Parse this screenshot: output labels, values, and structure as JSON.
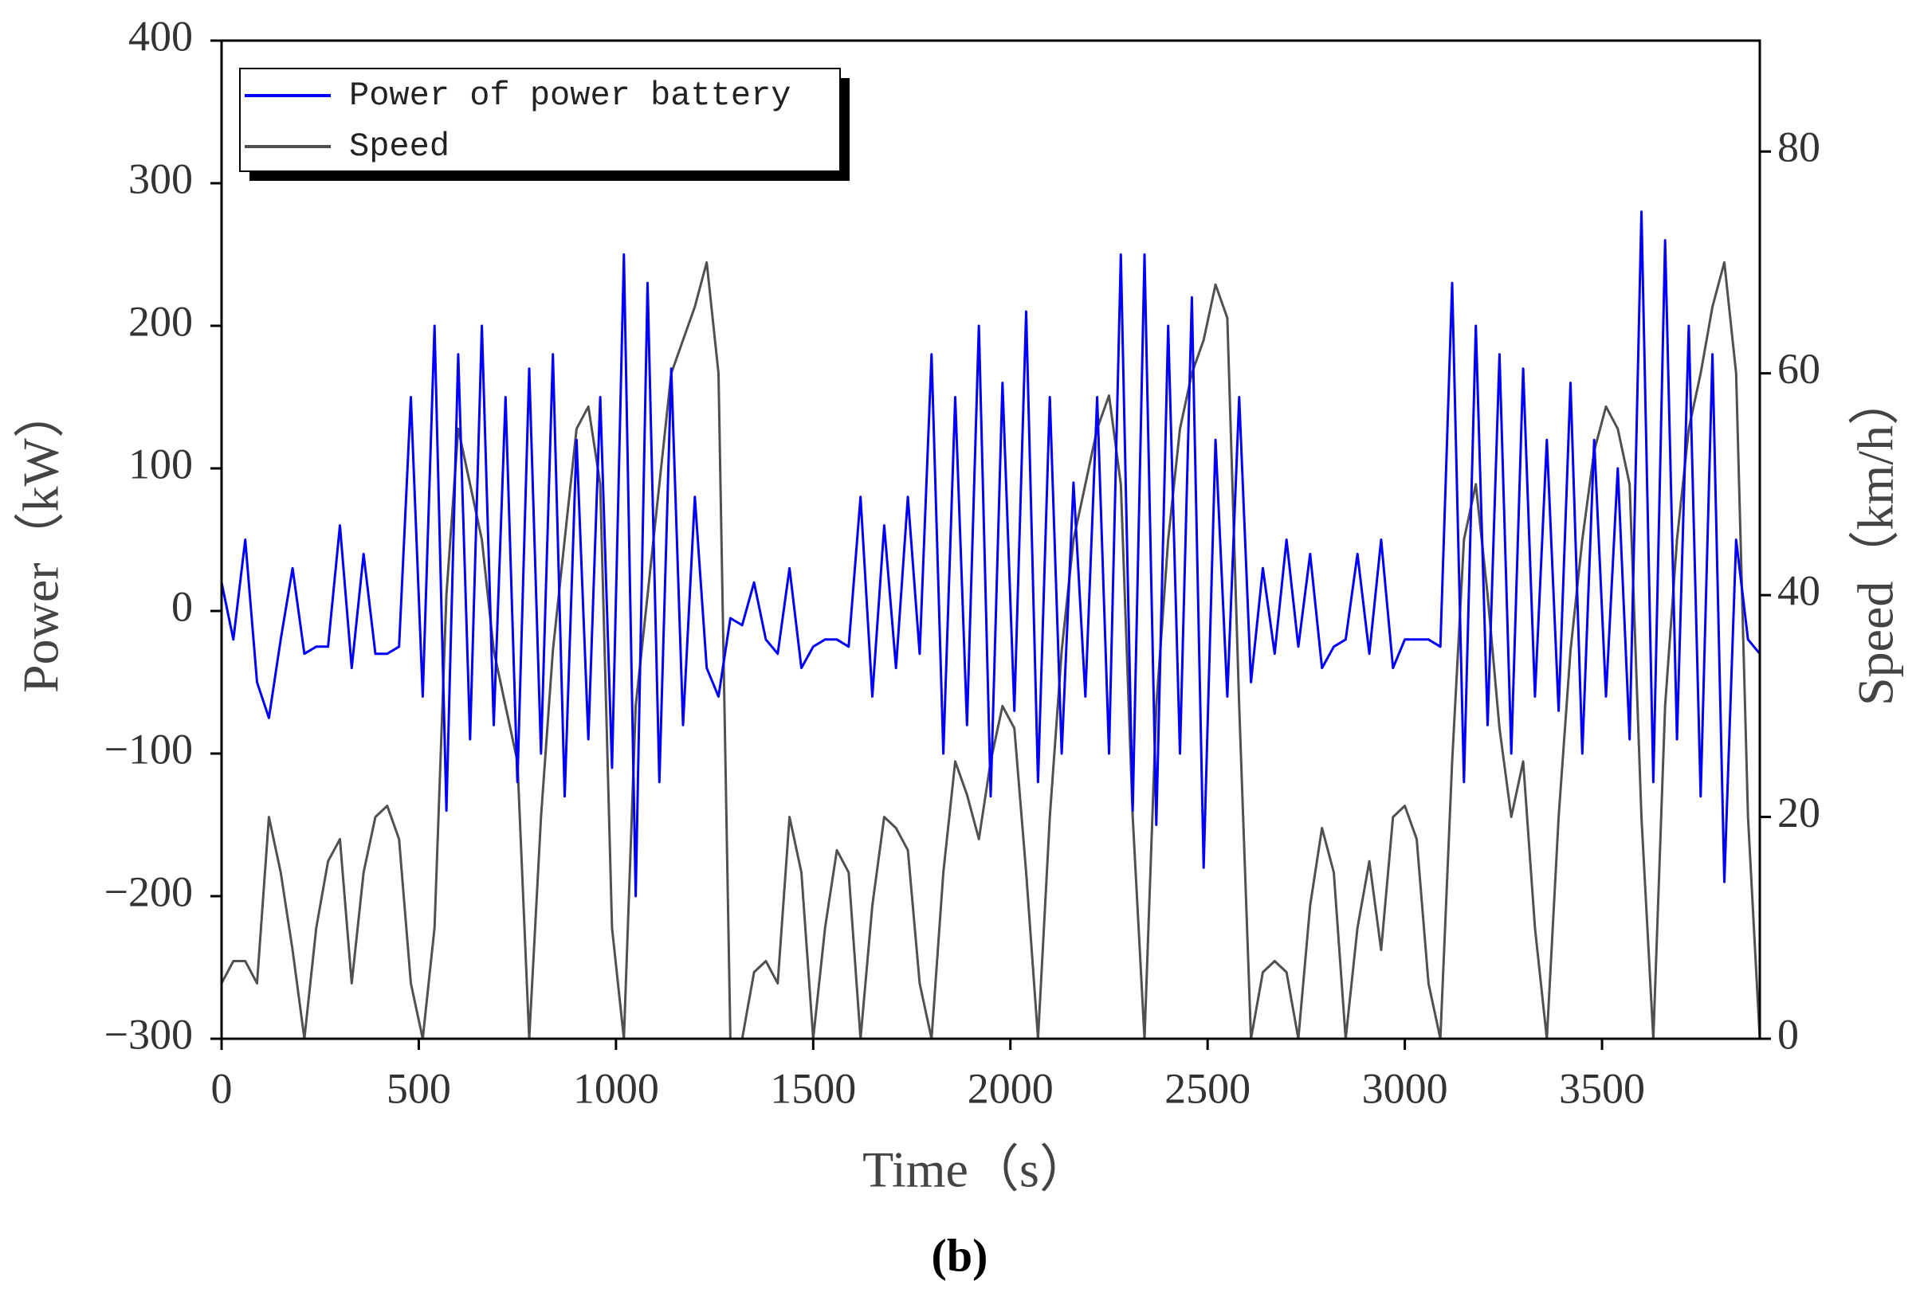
{
  "chart_data": {
    "type": "line",
    "caption": "(b)",
    "xlabel": "Time（s）",
    "ylabel": "Power（kW）",
    "y2label": "Speed（km/h）",
    "x": [
      0,
      30,
      60,
      90,
      120,
      150,
      180,
      210,
      240,
      270,
      300,
      330,
      360,
      390,
      420,
      450,
      480,
      510,
      540,
      570,
      600,
      630,
      660,
      690,
      720,
      750,
      780,
      810,
      840,
      870,
      900,
      930,
      960,
      990,
      1020,
      1050,
      1080,
      1110,
      1140,
      1170,
      1200,
      1230,
      1260,
      1290,
      1320,
      1350,
      1380,
      1410,
      1440,
      1470,
      1500,
      1530,
      1560,
      1590,
      1620,
      1650,
      1680,
      1710,
      1740,
      1770,
      1800,
      1830,
      1860,
      1890,
      1920,
      1950,
      1980,
      2010,
      2040,
      2070,
      2100,
      2130,
      2160,
      2190,
      2220,
      2250,
      2280,
      2310,
      2340,
      2370,
      2400,
      2430,
      2460,
      2490,
      2520,
      2550,
      2580,
      2610,
      2640,
      2670,
      2700,
      2730,
      2760,
      2790,
      2820,
      2850,
      2880,
      2910,
      2940,
      2970,
      3000,
      3030,
      3060,
      3090,
      3120,
      3150,
      3180,
      3210,
      3240,
      3270,
      3300,
      3330,
      3360,
      3390,
      3420,
      3450,
      3480,
      3510,
      3540,
      3570,
      3600,
      3630,
      3660,
      3690,
      3720,
      3750,
      3780,
      3810,
      3840,
      3870,
      3900
    ],
    "series": [
      {
        "name": "Power of power battery",
        "color": "#0000ff",
        "axis": "y",
        "values": [
          20,
          -20,
          50,
          -50,
          -75,
          -20,
          30,
          -30,
          -25,
          -25,
          60,
          -40,
          40,
          -30,
          -30,
          -25,
          150,
          -60,
          200,
          -140,
          180,
          -90,
          200,
          -80,
          150,
          -120,
          170,
          -100,
          180,
          -130,
          120,
          -90,
          150,
          -110,
          250,
          -200,
          230,
          -120,
          170,
          -80,
          80,
          -40,
          -60,
          -5,
          -10,
          20,
          -20,
          -30,
          30,
          -40,
          -25,
          -20,
          -20,
          -25,
          80,
          -60,
          60,
          -40,
          80,
          -30,
          180,
          -100,
          150,
          -80,
          200,
          -130,
          160,
          -70,
          210,
          -120,
          150,
          -100,
          90,
          -60,
          150,
          -100,
          250,
          -140,
          250,
          -150,
          200,
          -100,
          220,
          -180,
          120,
          -60,
          150,
          -50,
          30,
          -30,
          50,
          -25,
          40,
          -40,
          -25,
          -20,
          40,
          -30,
          50,
          -40,
          -20,
          -20,
          -20,
          -25,
          230,
          -120,
          200,
          -80,
          180,
          -100,
          170,
          -60,
          120,
          -70,
          160,
          -100,
          120,
          -60,
          100,
          -90,
          280,
          -120,
          260,
          -90,
          200,
          -130,
          180,
          -190,
          50,
          -20,
          -30
        ]
      },
      {
        "name": "Speed",
        "color": "#505050",
        "axis": "y2",
        "values": [
          5,
          7,
          7,
          5,
          20,
          15,
          8,
          0,
          10,
          16,
          18,
          5,
          15,
          20,
          21,
          18,
          5,
          0,
          10,
          40,
          55,
          50,
          45,
          35,
          30,
          25,
          0,
          20,
          35,
          45,
          55,
          57,
          50,
          10,
          0,
          30,
          40,
          50,
          60,
          63,
          66,
          70,
          60,
          0,
          0,
          6,
          7,
          5,
          20,
          15,
          0,
          10,
          17,
          15,
          0,
          12,
          20,
          19,
          17,
          5,
          0,
          15,
          25,
          22,
          18,
          25,
          30,
          28,
          15,
          0,
          20,
          35,
          45,
          50,
          55,
          58,
          50,
          20,
          0,
          30,
          45,
          55,
          60,
          63,
          68,
          65,
          30,
          0,
          6,
          7,
          6,
          0,
          12,
          19,
          15,
          0,
          10,
          16,
          8,
          20,
          21,
          18,
          5,
          0,
          25,
          45,
          50,
          40,
          28,
          20,
          25,
          10,
          0,
          20,
          35,
          45,
          53,
          57,
          55,
          50,
          20,
          0,
          30,
          45,
          55,
          60,
          66,
          70,
          60,
          20,
          0
        ]
      }
    ],
    "xlim": [
      0,
      3900
    ],
    "xticks": [
      0,
      500,
      1000,
      1500,
      2000,
      2500,
      3000,
      3500
    ],
    "ylim": [
      -300,
      400
    ],
    "yticks": [
      {
        "value": -300,
        "label": "−300"
      },
      {
        "value": -200,
        "label": "−200"
      },
      {
        "value": -100,
        "label": "−100"
      },
      0,
      100,
      200,
      300,
      400
    ],
    "y2lim": [
      0,
      90
    ],
    "y2ticks": [
      0,
      20,
      40,
      60,
      80
    ],
    "legend": "upper left"
  }
}
